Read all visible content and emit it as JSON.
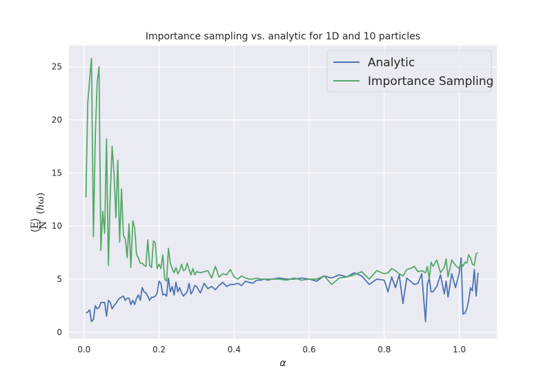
{
  "chart_data": {
    "type": "line",
    "title": "Importance sampling vs. analytic for 1D and 10 particles",
    "xlabel": "α",
    "ylabel_num": "⟨E⟩",
    "ylabel_den": "N",
    "ylabel_unit": "(ℏω)",
    "xlim": [
      -0.04,
      1.1
    ],
    "ylim": [
      -0.6,
      27.0
    ],
    "xticks": [
      0.0,
      0.2,
      0.4,
      0.6,
      0.8,
      1.0
    ],
    "xtick_labels": [
      "0.0",
      "0.2",
      "0.4",
      "0.6",
      "0.8",
      "1.0"
    ],
    "yticks": [
      0,
      5,
      10,
      15,
      20,
      25
    ],
    "ytick_labels": [
      "0",
      "5",
      "10",
      "15",
      "20",
      "25"
    ],
    "grid": true,
    "legend_position": "top-right",
    "series": [
      {
        "name": "Analytic",
        "color": "#4c72b0",
        "x": [
          0.005,
          0.01,
          0.015,
          0.02,
          0.025,
          0.03,
          0.035,
          0.04,
          0.045,
          0.05,
          0.055,
          0.06,
          0.065,
          0.07,
          0.075,
          0.08,
          0.085,
          0.09,
          0.095,
          0.1,
          0.105,
          0.11,
          0.115,
          0.12,
          0.125,
          0.13,
          0.135,
          0.14,
          0.145,
          0.15,
          0.155,
          0.16,
          0.165,
          0.17,
          0.175,
          0.18,
          0.185,
          0.19,
          0.195,
          0.2,
          0.205,
          0.21,
          0.215,
          0.22,
          0.225,
          0.23,
          0.235,
          0.24,
          0.245,
          0.25,
          0.255,
          0.26,
          0.265,
          0.27,
          0.275,
          0.28,
          0.285,
          0.29,
          0.295,
          0.3,
          0.31,
          0.32,
          0.33,
          0.34,
          0.35,
          0.36,
          0.37,
          0.38,
          0.39,
          0.4,
          0.41,
          0.42,
          0.43,
          0.44,
          0.45,
          0.46,
          0.47,
          0.48,
          0.49,
          0.5,
          0.52,
          0.54,
          0.56,
          0.58,
          0.6,
          0.62,
          0.64,
          0.66,
          0.68,
          0.7,
          0.72,
          0.74,
          0.76,
          0.78,
          0.8,
          0.81,
          0.82,
          0.83,
          0.84,
          0.85,
          0.86,
          0.87,
          0.88,
          0.89,
          0.9,
          0.91,
          0.915,
          0.92,
          0.925,
          0.93,
          0.94,
          0.95,
          0.96,
          0.965,
          0.97,
          0.98,
          0.99,
          1.0,
          1.005,
          1.01,
          1.015,
          1.02,
          1.025,
          1.03,
          1.035,
          1.04,
          1.045,
          1.05
        ],
        "y": [
          1.8,
          1.9,
          2.1,
          1.0,
          1.2,
          2.5,
          2.2,
          2.3,
          2.8,
          2.8,
          2.8,
          1.5,
          3.0,
          2.8,
          2.2,
          2.5,
          2.7,
          3.0,
          3.2,
          3.3,
          3.4,
          3.0,
          3.2,
          3.2,
          2.6,
          3.0,
          2.6,
          3.2,
          3.5,
          3.0,
          4.2,
          3.8,
          3.7,
          3.4,
          3.0,
          3.3,
          3.3,
          3.4,
          3.7,
          4.8,
          4.6,
          3.5,
          3.6,
          3.4,
          5.1,
          3.8,
          4.3,
          3.5,
          4.7,
          3.8,
          4.2,
          3.7,
          3.4,
          3.6,
          3.8,
          4.6,
          3.6,
          3.9,
          4.4,
          4.3,
          3.7,
          4.6,
          4.1,
          4.3,
          4.0,
          4.4,
          4.7,
          4.3,
          4.5,
          4.5,
          4.6,
          4.4,
          4.8,
          4.7,
          4.6,
          4.9,
          4.9,
          5.0,
          4.9,
          5.0,
          5.1,
          5.0,
          5.0,
          5.1,
          5.0,
          4.8,
          5.3,
          5.1,
          5.4,
          5.2,
          5.6,
          5.3,
          4.5,
          5.0,
          4.9,
          3.8,
          5.2,
          4.2,
          5.4,
          2.7,
          5.1,
          4.8,
          4.5,
          4.6,
          5.5,
          1.0,
          4.5,
          5.1,
          3.8,
          3.8,
          4.3,
          5.4,
          3.6,
          4.8,
          3.3,
          5.5,
          4.2,
          5.6,
          7.0,
          1.7,
          1.8,
          2.2,
          3.0,
          4.2,
          3.9,
          5.9,
          3.4,
          5.6
        ]
      },
      {
        "name": "Importance Sampling",
        "color": "#55a868",
        "x": [
          0.005,
          0.01,
          0.015,
          0.02,
          0.025,
          0.03,
          0.035,
          0.04,
          0.045,
          0.05,
          0.055,
          0.06,
          0.065,
          0.07,
          0.075,
          0.08,
          0.085,
          0.09,
          0.095,
          0.1,
          0.105,
          0.11,
          0.115,
          0.12,
          0.125,
          0.13,
          0.135,
          0.14,
          0.145,
          0.15,
          0.155,
          0.16,
          0.165,
          0.17,
          0.175,
          0.18,
          0.185,
          0.19,
          0.195,
          0.2,
          0.205,
          0.21,
          0.215,
          0.22,
          0.225,
          0.23,
          0.235,
          0.24,
          0.245,
          0.25,
          0.255,
          0.26,
          0.265,
          0.27,
          0.275,
          0.28,
          0.285,
          0.29,
          0.295,
          0.3,
          0.31,
          0.32,
          0.33,
          0.34,
          0.35,
          0.36,
          0.37,
          0.38,
          0.39,
          0.4,
          0.41,
          0.42,
          0.43,
          0.44,
          0.45,
          0.46,
          0.47,
          0.48,
          0.49,
          0.5,
          0.52,
          0.54,
          0.56,
          0.58,
          0.6,
          0.62,
          0.64,
          0.66,
          0.68,
          0.7,
          0.72,
          0.74,
          0.76,
          0.78,
          0.8,
          0.81,
          0.82,
          0.83,
          0.84,
          0.85,
          0.86,
          0.87,
          0.88,
          0.89,
          0.9,
          0.91,
          0.915,
          0.92,
          0.925,
          0.93,
          0.94,
          0.95,
          0.96,
          0.965,
          0.97,
          0.98,
          0.99,
          1.0,
          1.005,
          1.01,
          1.015,
          1.02,
          1.025,
          1.03,
          1.035,
          1.04,
          1.045,
          1.05
        ],
        "y": [
          12.7,
          21.6,
          23.8,
          25.8,
          9.0,
          18.5,
          23.5,
          25.0,
          7.7,
          11.4,
          9.3,
          18.2,
          6.3,
          13.0,
          17.5,
          14.9,
          10.8,
          16.2,
          8.5,
          13.5,
          9.1,
          8.8,
          7.0,
          10.2,
          6.1,
          10.5,
          9.8,
          7.3,
          7.0,
          6.5,
          6.5,
          6.3,
          6.2,
          8.7,
          6.3,
          6.1,
          8.6,
          8.4,
          6.0,
          6.4,
          6.0,
          7.3,
          5.0,
          4.8,
          7.9,
          6.5,
          6.0,
          5.6,
          6.1,
          5.5,
          5.8,
          6.4,
          5.8,
          5.9,
          6.5,
          5.9,
          5.4,
          6.0,
          5.4,
          5.7,
          5.6,
          5.7,
          5.8,
          5.1,
          6.2,
          5.2,
          5.5,
          5.4,
          5.9,
          5.2,
          5.0,
          5.3,
          5.1,
          5.0,
          5.0,
          5.1,
          5.0,
          5.0,
          5.0,
          5.0,
          5.0,
          4.9,
          5.1,
          4.9,
          5.0,
          5.0,
          5.3,
          4.5,
          5.1,
          5.2,
          5.4,
          5.7,
          5.0,
          5.8,
          5.5,
          5.6,
          6.0,
          5.8,
          5.5,
          5.3,
          5.9,
          6.0,
          6.2,
          5.7,
          5.8,
          5.6,
          6.2,
          5.0,
          6.6,
          6.2,
          6.8,
          5.6,
          6.1,
          6.9,
          5.2,
          6.8,
          6.3,
          6.0,
          6.5,
          6.2,
          6.6,
          6.5,
          7.3,
          7.0,
          6.4,
          6.3,
          7.4,
          7.5
        ]
      }
    ]
  }
}
